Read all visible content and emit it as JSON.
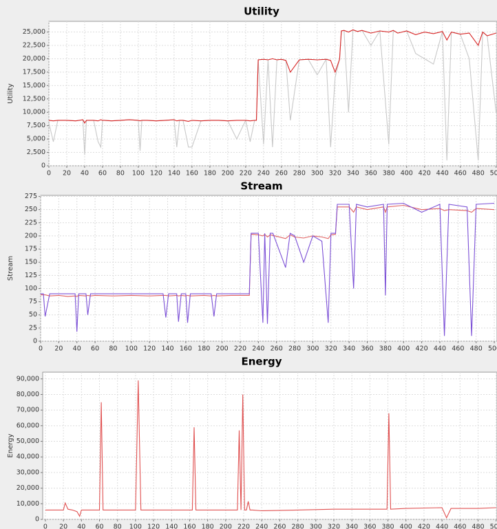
{
  "chart_data": [
    {
      "type": "line",
      "title": "Utility",
      "y_label": "Utility",
      "x": [
        0,
        5,
        10,
        20,
        30,
        38,
        40,
        42,
        50,
        55,
        58,
        60,
        62,
        70,
        80,
        90,
        100,
        102,
        104,
        110,
        120,
        130,
        140,
        143,
        146,
        150,
        156,
        160,
        170,
        180,
        190,
        200,
        210,
        220,
        225,
        230,
        232,
        234,
        240,
        245,
        250,
        255,
        260,
        265,
        270,
        280,
        290,
        300,
        310,
        315,
        320,
        325,
        327,
        330,
        335,
        340,
        345,
        350,
        360,
        370,
        380,
        385,
        390,
        400,
        410,
        420,
        430,
        440,
        445,
        450,
        460,
        470,
        480,
        485,
        490,
        500
      ],
      "series": [
        {
          "color": "#c8c8c8",
          "values": [
            8000,
            4500,
            8500,
            8500,
            8400,
            8600,
            2000,
            8500,
            8500,
            4500,
            3500,
            8500,
            8500,
            8400,
            8500,
            8600,
            8500,
            2800,
            8500,
            8500,
            8400,
            8500,
            8600,
            3500,
            8500,
            8500,
            3500,
            3500,
            8400,
            8500,
            8500,
            8400,
            5000,
            8500,
            4500,
            8500,
            8500,
            19800,
            4000,
            19800,
            3500,
            19800,
            19900,
            19700,
            8500,
            19800,
            19900,
            17000,
            19900,
            3500,
            16500,
            19900,
            25200,
            25300,
            10000,
            25400,
            25100,
            25300,
            22500,
            25200,
            4000,
            25300,
            24800,
            25200,
            21000,
            20000,
            19000,
            25100,
            1000,
            25000,
            24600,
            20000,
            1000,
            25000,
            24300,
            10000
          ]
        },
        {
          "color": "#d62020",
          "values": [
            8500,
            8400,
            8500,
            8500,
            8400,
            8600,
            8000,
            8500,
            8500,
            8400,
            8600,
            8500,
            8500,
            8400,
            8500,
            8600,
            8500,
            8400,
            8500,
            8500,
            8400,
            8500,
            8600,
            8400,
            8500,
            8500,
            8300,
            8500,
            8400,
            8500,
            8500,
            8400,
            8500,
            8500,
            8400,
            8500,
            8500,
            19800,
            19900,
            19800,
            20000,
            19800,
            19900,
            19700,
            17500,
            19800,
            19900,
            19800,
            19900,
            19700,
            17500,
            19900,
            25200,
            25300,
            25000,
            25400,
            25100,
            25300,
            24800,
            25200,
            25000,
            25300,
            24800,
            25200,
            24500,
            25000,
            24700,
            25100,
            23500,
            25000,
            24600,
            24800,
            22500,
            25000,
            24300,
            24800
          ]
        }
      ],
      "xlim": [
        0,
        501
      ],
      "xticks": [
        0,
        20,
        40,
        60,
        80,
        100,
        120,
        140,
        160,
        180,
        200,
        220,
        240,
        260,
        280,
        300,
        320,
        340,
        360,
        380,
        400,
        420,
        440,
        460,
        480,
        500
      ],
      "ylim": [
        0,
        27000
      ],
      "yticks": [
        {
          "value": 0,
          "label": "0"
        },
        {
          "value": 2500,
          "label": "2,500"
        },
        {
          "value": 5000,
          "label": "5,000"
        },
        {
          "value": 7500,
          "label": "7,500"
        },
        {
          "value": 10000,
          "label": "10,000"
        },
        {
          "value": 12500,
          "label": "12,500"
        },
        {
          "value": 15000,
          "label": "15,000"
        },
        {
          "value": 17500,
          "label": "17,500"
        },
        {
          "value": 20000,
          "label": "20,000"
        },
        {
          "value": 22500,
          "label": "22,500"
        },
        {
          "value": 25000,
          "label": "25,000"
        }
      ],
      "grid": true
    },
    {
      "type": "line",
      "title": "Stream",
      "y_label": "Stream",
      "x": [
        0,
        3,
        5,
        10,
        20,
        30,
        38,
        40,
        42,
        50,
        52,
        55,
        60,
        80,
        100,
        120,
        135,
        138,
        141,
        150,
        152,
        155,
        160,
        162,
        165,
        180,
        188,
        191,
        194,
        210,
        230,
        232,
        234,
        240,
        245,
        247,
        250,
        253,
        256,
        270,
        275,
        280,
        290,
        300,
        310,
        317,
        320,
        325,
        327,
        340,
        345,
        348,
        360,
        378,
        380,
        382,
        400,
        420,
        440,
        445,
        450,
        470,
        475,
        480,
        500
      ],
      "series": [
        {
          "color": "#e06060",
          "values": [
            88,
            88,
            88,
            86,
            87,
            85,
            86,
            85,
            87,
            86,
            87,
            86,
            87,
            86,
            87,
            86,
            87,
            87,
            86,
            87,
            86,
            87,
            86,
            87,
            86,
            87,
            86,
            87,
            86,
            87,
            87,
            203,
            203,
            202,
            200,
            203,
            198,
            202,
            201,
            195,
            202,
            198,
            196,
            200,
            198,
            195,
            202,
            203,
            255,
            255,
            245,
            255,
            250,
            255,
            245,
            255,
            258,
            250,
            252,
            248,
            250,
            248,
            245,
            252,
            250
          ]
        },
        {
          "color": "#7b4fd6",
          "values": [
            90,
            90,
            47,
            90,
            90,
            90,
            90,
            18,
            90,
            90,
            50,
            90,
            90,
            90,
            90,
            90,
            90,
            45,
            90,
            90,
            37,
            90,
            90,
            35,
            90,
            90,
            90,
            47,
            90,
            90,
            90,
            205,
            205,
            205,
            35,
            205,
            33,
            205,
            205,
            140,
            205,
            200,
            150,
            200,
            190,
            35,
            205,
            205,
            260,
            260,
            100,
            260,
            255,
            260,
            87,
            260,
            262,
            245,
            260,
            10,
            260,
            255,
            10,
            260,
            262
          ]
        }
      ],
      "xlim": [
        0,
        503
      ],
      "xticks": [
        0,
        20,
        40,
        60,
        80,
        100,
        120,
        140,
        160,
        180,
        200,
        220,
        240,
        260,
        280,
        300,
        320,
        340,
        360,
        380,
        400,
        420,
        440,
        460,
        480,
        500
      ],
      "ylim": [
        0,
        277
      ],
      "yticks": [
        0,
        25,
        50,
        75,
        100,
        125,
        150,
        175,
        200,
        225,
        250,
        275
      ],
      "grid": true
    },
    {
      "type": "line",
      "title": "Energy",
      "y_label": "Energy",
      "x": [
        0,
        20,
        22,
        25,
        30,
        35,
        38,
        40,
        60,
        62,
        64,
        100,
        103,
        106,
        120,
        150,
        163,
        165,
        167,
        200,
        213,
        215,
        217,
        219,
        221,
        223,
        225,
        227,
        230,
        240,
        280,
        320,
        379,
        381,
        383,
        400,
        440,
        445,
        450,
        480,
        500
      ],
      "series": [
        {
          "color": "#e05050",
          "values": [
            6000,
            6000,
            10500,
            6500,
            6000,
            5000,
            2000,
            6000,
            6000,
            75000,
            6000,
            6000,
            89000,
            6000,
            6000,
            6000,
            6000,
            59000,
            6000,
            6000,
            6000,
            57000,
            6000,
            80000,
            6000,
            6000,
            11500,
            6000,
            6000,
            5500,
            6000,
            6500,
            6500,
            68000,
            6500,
            7000,
            7500,
            1000,
            7000,
            7000,
            7500
          ]
        }
      ],
      "xlim": [
        -3,
        501
      ],
      "xticks": [
        0,
        20,
        40,
        60,
        80,
        100,
        120,
        140,
        160,
        180,
        200,
        220,
        240,
        260,
        280,
        300,
        320,
        340,
        360,
        380,
        400,
        420,
        440,
        460,
        480,
        500
      ],
      "ylim": [
        0,
        94300
      ],
      "yticks": [
        {
          "value": 0,
          "label": "0"
        },
        {
          "value": 10000,
          "label": "10,000"
        },
        {
          "value": 20000,
          "label": "20,000"
        },
        {
          "value": 30000,
          "label": "30,000"
        },
        {
          "value": 40000,
          "label": "40,000"
        },
        {
          "value": 50000,
          "label": "50,000"
        },
        {
          "value": 60000,
          "label": "60,000"
        },
        {
          "value": 70000,
          "label": "70,000"
        },
        {
          "value": 80000,
          "label": "80,000"
        },
        {
          "value": 90000,
          "label": "90,000"
        }
      ],
      "grid": true
    }
  ]
}
